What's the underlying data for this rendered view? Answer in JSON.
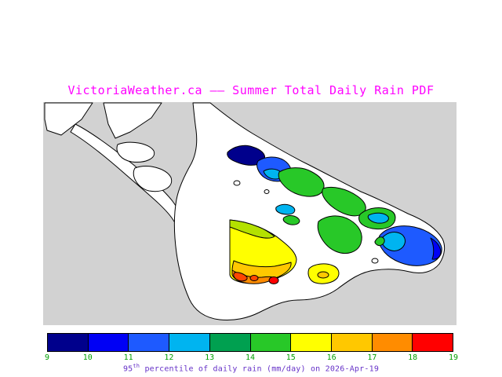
{
  "title": {
    "text": "VictoriaWeather.ca —— Summer Total Daily Rain PDF",
    "color": "#FF00FF"
  },
  "map": {
    "water_color": "#D2D2D2",
    "land_color": "#FFFFFF",
    "coastline_color": "#000000"
  },
  "extra_colors": {
    "yellow_green": "#B4E100",
    "red_orange": "#FF4600"
  },
  "colorbar": {
    "colors": [
      "#00008C",
      "#0000F5",
      "#1E5AFF",
      "#00B4F0",
      "#00A050",
      "#28C828",
      "#FFFF00",
      "#FFC800",
      "#FF8C00",
      "#FF0000"
    ],
    "ticks": [
      "9",
      "10",
      "11",
      "12",
      "13",
      "14",
      "15",
      "16",
      "17",
      "18",
      "19"
    ],
    "tick_color": "#00A000",
    "caption": {
      "value_prefix": "95",
      "sup": "th",
      "rest": " percentile of daily rain (mm/day) on 2026-Apr-19",
      "color": "#6632C8"
    }
  },
  "chart_data": {
    "type": "heatmap",
    "title": "VictoriaWeather.ca —— Summer Total Daily Rain PDF",
    "colorbar_ticks": [
      9,
      10,
      11,
      12,
      13,
      14,
      15,
      16,
      17,
      18,
      19
    ],
    "colorbar_label": "95th percentile of daily rain (mm/day) on 2026-Apr-19",
    "units": "mm/day"
  }
}
